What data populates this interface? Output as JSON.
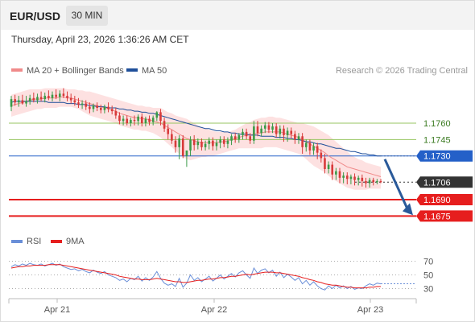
{
  "header": {
    "symbol": "EUR/USD",
    "timeframe": "30 MIN",
    "timestamp": "Thursday, April 23, 2026 1:36:26 AM CET"
  },
  "legend": {
    "ma20": "MA 20 + Bollinger Bands",
    "ma50": "MA 50",
    "credit": "Research © 2026 Trading Central",
    "rsi": "RSI",
    "rsi_ma": "9MA"
  },
  "colors": {
    "bull": "#3a9a48",
    "bear": "#d83a3a",
    "ma20": "#f08a8a",
    "bands": "#fde1e1",
    "ma50": "#1f4f9a",
    "support": "#e61e1e",
    "resistance_green": "#97c561",
    "resistance_blue": "#2460c8",
    "current": "#333333",
    "arrow": "#2a5a9a",
    "rsi": "#6a8fd8",
    "rsi_ma": "#e61e1e"
  },
  "chart_data": [
    {
      "type": "candlestick",
      "title": "EUR/USD",
      "timeframe": "30 MIN",
      "x_ticks": [
        "Apr 21",
        "Apr 22",
        "Apr 23"
      ],
      "y_range": [
        1.1662,
        1.1802
      ],
      "levels": [
        {
          "value": 1.176,
          "label": "1.1760",
          "kind": "resistance",
          "color": "#97c561"
        },
        {
          "value": 1.1745,
          "label": "1.1745",
          "kind": "resistance",
          "color": "#97c561"
        },
        {
          "value": 1.173,
          "label": "1.1730",
          "kind": "pivot",
          "color": "#2460c8"
        },
        {
          "value": 1.1706,
          "label": "1.1706",
          "kind": "current",
          "color": "#333333"
        },
        {
          "value": 1.169,
          "label": "1.1690",
          "kind": "support",
          "color": "#e61e1e"
        },
        {
          "value": 1.1675,
          "label": "1.1675",
          "kind": "support",
          "color": "#e61e1e"
        }
      ],
      "candles": {
        "open": [
          1.1775,
          1.1782,
          1.1779,
          1.1781,
          1.1778,
          1.178,
          1.1783,
          1.1781,
          1.1784,
          1.1782,
          1.1785,
          1.1783,
          1.1786,
          1.1784,
          1.1787,
          1.1785,
          1.1783,
          1.1781,
          1.1779,
          1.1777,
          1.1778,
          1.1775,
          1.1773,
          1.1776,
          1.1774,
          1.1772,
          1.1775,
          1.1773,
          1.1771,
          1.1767,
          1.1762,
          1.1764,
          1.176,
          1.1763,
          1.1762,
          1.1766,
          1.176,
          1.1764,
          1.1761,
          1.1765,
          1.177,
          1.1762,
          1.1755,
          1.175,
          1.1744,
          1.1738,
          1.1746,
          1.173,
          1.1735,
          1.1745,
          1.174,
          1.1743,
          1.1738,
          1.1741,
          1.1744,
          1.1739,
          1.1742,
          1.1745,
          1.1741,
          1.1744,
          1.1748,
          1.1745,
          1.1749,
          1.1752,
          1.1748,
          1.1744,
          1.1757,
          1.1751,
          1.1755,
          1.1758,
          1.1754,
          1.1757,
          1.175,
          1.1755,
          1.1749,
          1.1753,
          1.175,
          1.1745,
          1.1748,
          1.1738,
          1.1742,
          1.1735,
          1.1739,
          1.1733,
          1.1728,
          1.1718,
          1.1722,
          1.1713,
          1.1716,
          1.171,
          1.1712,
          1.1709,
          1.1711,
          1.1708,
          1.171,
          1.1707,
          1.1705,
          1.1708,
          1.1706,
          1.1707
        ],
        "high": [
          1.1785,
          1.1786,
          1.1785,
          1.1786,
          1.1785,
          1.1786,
          1.1788,
          1.1787,
          1.1789,
          1.1788,
          1.179,
          1.1789,
          1.1791,
          1.179,
          1.1792,
          1.1789,
          1.1787,
          1.1785,
          1.1783,
          1.1781,
          1.1781,
          1.1779,
          1.1778,
          1.1779,
          1.1777,
          1.1777,
          1.1779,
          1.1776,
          1.1774,
          1.177,
          1.1767,
          1.1767,
          1.1765,
          1.1767,
          1.1768,
          1.1769,
          1.1766,
          1.1767,
          1.1767,
          1.1771,
          1.1773,
          1.1765,
          1.1759,
          1.1754,
          1.1748,
          1.1749,
          1.1749,
          1.1734,
          1.1748,
          1.1749,
          1.1746,
          1.1746,
          1.1744,
          1.1747,
          1.1747,
          1.1745,
          1.1748,
          1.1748,
          1.1747,
          1.175,
          1.1751,
          1.1751,
          1.1755,
          1.1755,
          1.1751,
          1.1762,
          1.1762,
          1.1758,
          1.1761,
          1.1761,
          1.176,
          1.176,
          1.1758,
          1.1758,
          1.1756,
          1.1756,
          1.1753,
          1.1751,
          1.1751,
          1.1745,
          1.1745,
          1.1742,
          1.1742,
          1.1736,
          1.1732,
          1.1725,
          1.1725,
          1.1719,
          1.1719,
          1.1715,
          1.1715,
          1.1713,
          1.1714,
          1.1712,
          1.1713,
          1.171,
          1.171,
          1.171,
          1.1709,
          1.1709
        ],
        "low": [
          1.1771,
          1.1776,
          1.1775,
          1.1777,
          1.1775,
          1.1777,
          1.1779,
          1.1778,
          1.178,
          1.1779,
          1.1781,
          1.178,
          1.1782,
          1.178,
          1.1783,
          1.178,
          1.1778,
          1.1776,
          1.1774,
          1.1773,
          1.1772,
          1.1769,
          1.177,
          1.1771,
          1.1769,
          1.1769,
          1.177,
          1.1768,
          1.1764,
          1.1759,
          1.1758,
          1.1758,
          1.1757,
          1.1758,
          1.1758,
          1.1757,
          1.1757,
          1.1758,
          1.1758,
          1.1762,
          1.1758,
          1.1752,
          1.1745,
          1.1741,
          1.1733,
          1.1727,
          1.1728,
          1.172,
          1.173,
          1.1735,
          1.1736,
          1.1735,
          1.1735,
          1.1736,
          1.1735,
          1.1735,
          1.1737,
          1.1738,
          1.1737,
          1.174,
          1.1742,
          1.1742,
          1.1745,
          1.1745,
          1.1741,
          1.1741,
          1.1748,
          1.1748,
          1.1751,
          1.1751,
          1.1751,
          1.1747,
          1.1746,
          1.1743,
          1.1743,
          1.1746,
          1.1741,
          1.1741,
          1.1732,
          1.1734,
          1.1731,
          1.1731,
          1.1727,
          1.1724,
          1.1714,
          1.1714,
          1.1708,
          1.1708,
          1.1705,
          1.1705,
          1.1704,
          1.1704,
          1.1703,
          1.1703,
          1.1702,
          1.1701,
          1.1701,
          1.1703,
          1.1704,
          1.1705
        ],
        "close": [
          1.1782,
          1.1779,
          1.1781,
          1.1778,
          1.178,
          1.1783,
          1.1781,
          1.1784,
          1.1782,
          1.1785,
          1.1783,
          1.1786,
          1.1784,
          1.1787,
          1.1785,
          1.1783,
          1.1781,
          1.1779,
          1.1777,
          1.1778,
          1.1775,
          1.1773,
          1.1776,
          1.1774,
          1.1772,
          1.1775,
          1.1773,
          1.1771,
          1.1767,
          1.1762,
          1.1764,
          1.176,
          1.1763,
          1.1762,
          1.1766,
          1.176,
          1.1764,
          1.1761,
          1.1765,
          1.177,
          1.1762,
          1.1755,
          1.175,
          1.1744,
          1.1738,
          1.1746,
          1.173,
          1.1735,
          1.1745,
          1.174,
          1.1743,
          1.1738,
          1.1741,
          1.1744,
          1.1739,
          1.1742,
          1.1745,
          1.1741,
          1.1744,
          1.1748,
          1.1745,
          1.1749,
          1.1752,
          1.1748,
          1.1744,
          1.1757,
          1.1751,
          1.1755,
          1.1758,
          1.1754,
          1.1757,
          1.175,
          1.1755,
          1.1749,
          1.1753,
          1.175,
          1.1745,
          1.1748,
          1.1738,
          1.1742,
          1.1735,
          1.1739,
          1.1733,
          1.1728,
          1.1718,
          1.1722,
          1.1713,
          1.1716,
          1.171,
          1.1712,
          1.1709,
          1.1711,
          1.1708,
          1.171,
          1.1707,
          1.1705,
          1.1708,
          1.1706,
          1.1707,
          1.1706
        ]
      },
      "ma20": [
        1.1776,
        1.1777,
        1.1778,
        1.1779,
        1.178,
        1.1781,
        1.1782,
        1.1782,
        1.1782,
        1.1783,
        1.1783,
        1.1783,
        1.1783,
        1.1784,
        1.1784,
        1.1783,
        1.1783,
        1.1782,
        1.1781,
        1.178,
        1.1779,
        1.1778,
        1.1777,
        1.1776,
        1.1775,
        1.1774,
        1.1773,
        1.1772,
        1.1771,
        1.1769,
        1.1768,
        1.1767,
        1.1766,
        1.1765,
        1.1765,
        1.1764,
        1.1764,
        1.1763,
        1.1762,
        1.1761,
        1.176,
        1.1758,
        1.1756,
        1.1754,
        1.1752,
        1.175,
        1.1748,
        1.1746,
        1.1745,
        1.1744,
        1.1743,
        1.1742,
        1.1742,
        1.1742,
        1.1742,
        1.1742,
        1.1743,
        1.1743,
        1.1744,
        1.1745,
        1.1746,
        1.1747,
        1.1748,
        1.1749,
        1.1749,
        1.175,
        1.1751,
        1.1751,
        1.1752,
        1.1752,
        1.1752,
        1.1752,
        1.1752,
        1.1751,
        1.175,
        1.1749,
        1.1748,
        1.1747,
        1.1745,
        1.1743,
        1.1741,
        1.1739,
        1.1737,
        1.1735,
        1.1733,
        1.173,
        1.1728,
        1.1726,
        1.1724,
        1.1722,
        1.172,
        1.1719,
        1.1718,
        1.1717,
        1.1716,
        1.1715,
        1.1714,
        1.1713,
        1.1712,
        1.1711
      ],
      "bb_upper": [
        1.1786,
        1.1787,
        1.1788,
        1.1789,
        1.179,
        1.1791,
        1.1791,
        1.1791,
        1.1791,
        1.1792,
        1.1792,
        1.1792,
        1.1792,
        1.1792,
        1.1792,
        1.1791,
        1.1791,
        1.1791,
        1.179,
        1.179,
        1.1789,
        1.1789,
        1.1788,
        1.1787,
        1.1786,
        1.1785,
        1.1784,
        1.1783,
        1.1782,
        1.1781,
        1.178,
        1.1779,
        1.1778,
        1.1777,
        1.1776,
        1.1776,
        1.1775,
        1.1775,
        1.1774,
        1.1774,
        1.1774,
        1.1772,
        1.177,
        1.1769,
        1.1767,
        1.1766,
        1.1765,
        1.1764,
        1.1762,
        1.176,
        1.1758,
        1.1756,
        1.1755,
        1.1754,
        1.1753,
        1.1752,
        1.1752,
        1.1752,
        1.1752,
        1.1753,
        1.1754,
        1.1756,
        1.1758,
        1.176,
        1.1761,
        1.1763,
        1.1764,
        1.1765,
        1.1765,
        1.1766,
        1.1766,
        1.1765,
        1.1765,
        1.1764,
        1.1763,
        1.1762,
        1.1761,
        1.176,
        1.176,
        1.1759,
        1.1758,
        1.1757,
        1.1755,
        1.1753,
        1.1751,
        1.1749,
        1.1746,
        1.1743,
        1.174,
        1.1737,
        1.1734,
        1.1731,
        1.1729,
        1.1727,
        1.1726,
        1.1724,
        1.1723,
        1.1722,
        1.1721,
        1.172
      ],
      "bb_lower": [
        1.1766,
        1.1767,
        1.1768,
        1.1769,
        1.177,
        1.1771,
        1.1772,
        1.1773,
        1.1773,
        1.1774,
        1.1774,
        1.1774,
        1.1774,
        1.1775,
        1.1775,
        1.1775,
        1.1775,
        1.1774,
        1.1773,
        1.1771,
        1.1769,
        1.1767,
        1.1766,
        1.1765,
        1.1764,
        1.1763,
        1.1762,
        1.1761,
        1.176,
        1.1758,
        1.1757,
        1.1756,
        1.1755,
        1.1754,
        1.1754,
        1.1753,
        1.1753,
        1.1752,
        1.1751,
        1.1749,
        1.1747,
        1.1744,
        1.1741,
        1.1738,
        1.1735,
        1.1732,
        1.1729,
        1.1727,
        1.1726,
        1.1727,
        1.1728,
        1.1729,
        1.1729,
        1.173,
        1.173,
        1.1731,
        1.1732,
        1.1733,
        1.1734,
        1.1735,
        1.1736,
        1.1737,
        1.1737,
        1.1737,
        1.1737,
        1.1737,
        1.1737,
        1.1737,
        1.1738,
        1.1738,
        1.1738,
        1.1738,
        1.1737,
        1.1736,
        1.1735,
        1.1734,
        1.1733,
        1.1732,
        1.173,
        1.1727,
        1.1724,
        1.1721,
        1.1719,
        1.1717,
        1.1715,
        1.1712,
        1.1709,
        1.1707,
        1.1705,
        1.1703,
        1.1701,
        1.17,
        1.1699,
        1.1699,
        1.1699,
        1.1699,
        1.17,
        1.17,
        1.17,
        1.17
      ],
      "ma50": [
        1.1779,
        1.178,
        1.178,
        1.178,
        1.178,
        1.178,
        1.178,
        1.178,
        1.178,
        1.178,
        1.1779,
        1.1779,
        1.1779,
        1.1779,
        1.1779,
        1.1778,
        1.1778,
        1.1778,
        1.1777,
        1.1777,
        1.1777,
        1.1776,
        1.1776,
        1.1775,
        1.1775,
        1.1775,
        1.1774,
        1.1774,
        1.1774,
        1.1773,
        1.1773,
        1.1772,
        1.1772,
        1.1771,
        1.1771,
        1.177,
        1.177,
        1.1769,
        1.1769,
        1.1768,
        1.1767,
        1.1766,
        1.1765,
        1.1764,
        1.1763,
        1.1762,
        1.1761,
        1.176,
        1.1759,
        1.1758,
        1.1757,
        1.1756,
        1.1755,
        1.1755,
        1.1754,
        1.1753,
        1.1753,
        1.1752,
        1.1752,
        1.1751,
        1.1751,
        1.175,
        1.175,
        1.175,
        1.1749,
        1.1749,
        1.1749,
        1.1748,
        1.1748,
        1.1748,
        1.1748,
        1.1747,
        1.1747,
        1.1747,
        1.1746,
        1.1746,
        1.1745,
        1.1745,
        1.1744,
        1.1743,
        1.1743,
        1.1742,
        1.1741,
        1.1741,
        1.174,
        1.1739,
        1.1738,
        1.1737,
        1.1737,
        1.1736,
        1.1735,
        1.1734,
        1.1734,
        1.1733,
        1.1732,
        1.1732,
        1.1731,
        1.1731,
        1.173,
        1.173
      ],
      "forecast_arrow": {
        "from": 1.1727,
        "to": 1.1675
      }
    },
    {
      "type": "line",
      "title": "RSI",
      "y_ticks": [
        70,
        50,
        30
      ],
      "y_range": [
        20,
        80
      ],
      "series": [
        {
          "name": "RSI",
          "color": "#6a8fd8",
          "values": [
            62,
            65,
            63,
            66,
            64,
            67,
            65,
            64,
            66,
            63,
            65,
            67,
            64,
            66,
            62,
            60,
            58,
            59,
            56,
            58,
            55,
            53,
            57,
            54,
            52,
            55,
            50,
            48,
            46,
            42,
            44,
            40,
            45,
            43,
            48,
            41,
            46,
            42,
            47,
            55,
            45,
            38,
            35,
            37,
            33,
            45,
            32,
            38,
            50,
            42,
            46,
            40,
            44,
            48,
            41,
            45,
            50,
            44,
            48,
            52,
            47,
            53,
            56,
            50,
            45,
            60,
            52,
            57,
            59,
            53,
            57,
            48,
            54,
            46,
            51,
            47,
            42,
            46,
            37,
            42,
            35,
            40,
            34,
            30,
            28,
            34,
            30,
            35,
            31,
            34,
            30,
            33,
            29,
            31,
            30,
            34,
            37,
            35,
            38,
            37
          ]
        },
        {
          "name": "9MA",
          "color": "#e61e1e",
          "values": [
            60,
            61,
            62,
            62,
            63,
            63,
            64,
            64,
            64,
            64,
            65,
            65,
            65,
            65,
            64,
            63,
            62,
            61,
            60,
            59,
            58,
            57,
            56,
            55,
            54,
            53,
            52,
            51,
            50,
            48,
            47,
            46,
            45,
            44,
            44,
            43,
            43,
            43,
            44,
            45,
            44,
            43,
            42,
            41,
            40,
            40,
            39,
            39,
            40,
            41,
            42,
            42,
            43,
            44,
            44,
            45,
            46,
            46,
            47,
            48,
            48,
            49,
            50,
            51,
            50,
            51,
            52,
            53,
            54,
            54,
            54,
            53,
            53,
            52,
            51,
            50,
            49,
            48,
            46,
            45,
            43,
            42,
            40,
            39,
            37,
            36,
            35,
            35,
            34,
            33,
            32,
            32,
            31,
            31,
            31,
            31,
            32,
            32,
            33,
            33
          ]
        }
      ],
      "x_ticks": [
        "Apr 21",
        "Apr 22",
        "Apr 23"
      ]
    }
  ]
}
